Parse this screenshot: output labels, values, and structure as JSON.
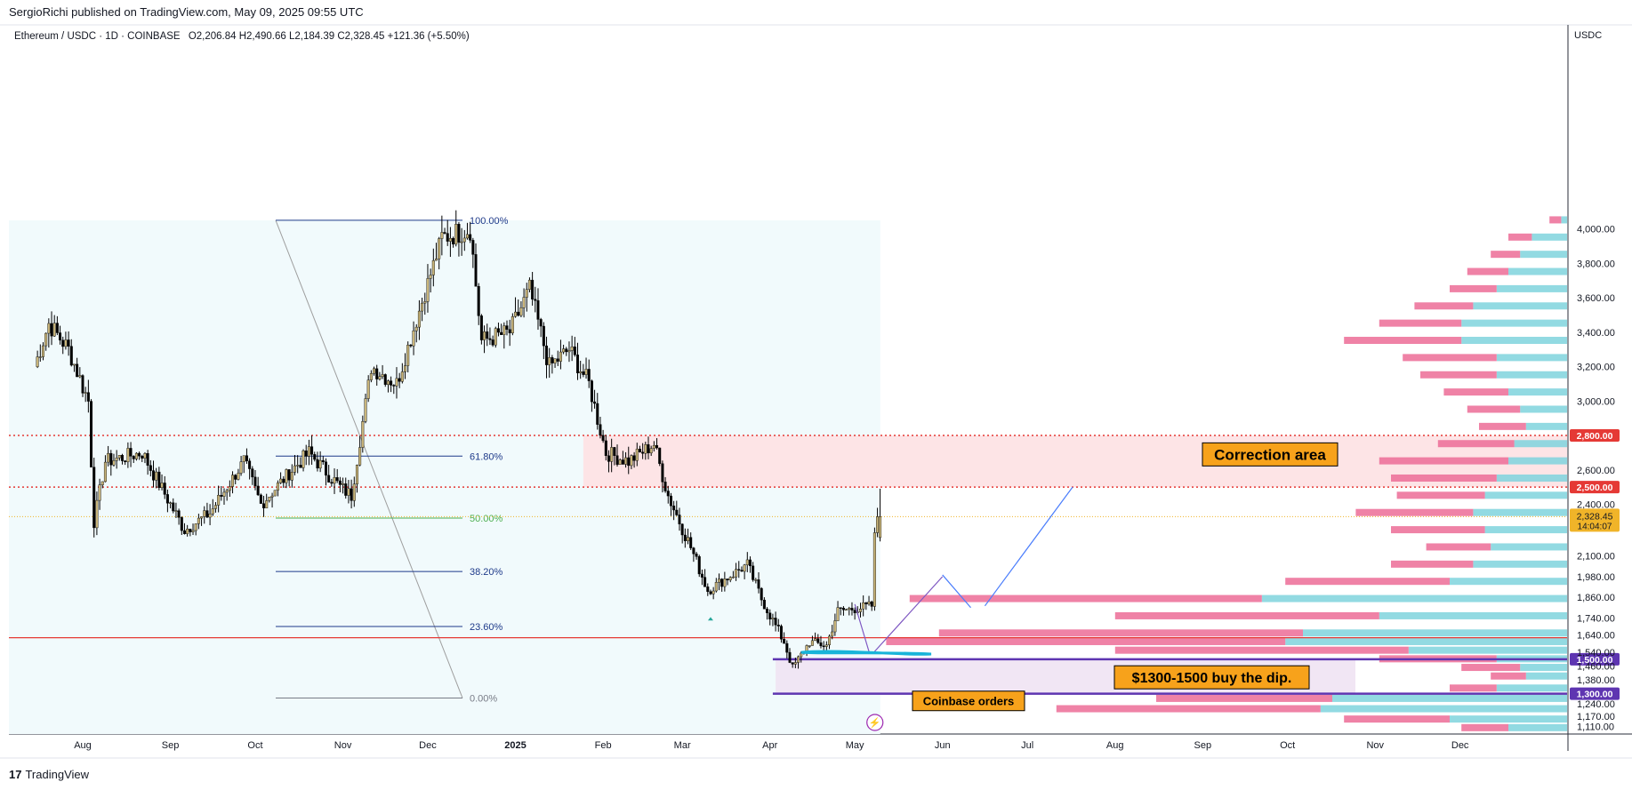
{
  "header": {
    "published": "SergioRichi published on TradingView.com, May 09, 2025 09:55 UTC",
    "symbol": "Ethereum / USDC · 1D · COINBASE",
    "ohlc": "O2,206.84  H2,490.66  L2,184.39  C2,328.45  +121.36 (+5.50%)"
  },
  "axis_currency": "USDC",
  "footer": {
    "brand": "TradingView",
    "logo_glyph": "17"
  },
  "colors": {
    "fib_blue": "#1e3a8a",
    "fib_green": "#4caf50",
    "red_line": "#e53935",
    "purple_line": "#5e35b1",
    "label_orange": "#f7a21b",
    "vp_pink": "#ec6c96",
    "vp_cyan": "#7fd3dd",
    "zone_pink": "#fde4e6",
    "zone_purple": "#efe3f3",
    "bg_blue": "#f1fafc"
  },
  "chart_data": {
    "type": "candlestick",
    "x_ticks": [
      "Aug",
      "Sep",
      "Oct",
      "Nov",
      "Dec",
      "2025",
      "Feb",
      "Mar",
      "Apr",
      "May",
      "Jun",
      "Jul",
      "Aug",
      "Sep",
      "Oct",
      "Nov",
      "Dec"
    ],
    "y_ticks": [
      4000,
      3800,
      3600,
      3400,
      3200,
      3000,
      2600,
      2400,
      2100,
      1980,
      1860,
      1740,
      1640,
      1540,
      1460,
      1380,
      1240,
      1170,
      1110
    ],
    "ylim": [
      1080,
      4100
    ],
    "price_anchors": [
      [
        "2024-07-15",
        3200
      ],
      [
        "2024-07-20",
        3450
      ],
      [
        "2024-07-27",
        3300
      ],
      [
        "2024-08-03",
        3000
      ],
      [
        "2024-08-05",
        2300
      ],
      [
        "2024-08-09",
        2650
      ],
      [
        "2024-08-22",
        2700
      ],
      [
        "2024-08-27",
        2550
      ],
      [
        "2024-09-06",
        2250
      ],
      [
        "2024-09-15",
        2350
      ],
      [
        "2024-09-27",
        2650
      ],
      [
        "2024-10-03",
        2400
      ],
      [
        "2024-10-14",
        2600
      ],
      [
        "2024-10-20",
        2700
      ],
      [
        "2024-10-31",
        2500
      ],
      [
        "2024-11-04",
        2450
      ],
      [
        "2024-11-11",
        3200
      ],
      [
        "2024-11-20",
        3100
      ],
      [
        "2024-12-06",
        3950
      ],
      [
        "2024-12-16",
        4000
      ],
      [
        "2024-12-20",
        3350
      ],
      [
        "2024-12-30",
        3400
      ],
      [
        "2025-01-06",
        3650
      ],
      [
        "2025-01-13",
        3200
      ],
      [
        "2025-01-20",
        3300
      ],
      [
        "2025-01-27",
        3100
      ],
      [
        "2025-02-02",
        2700
      ],
      [
        "2025-02-10",
        2650
      ],
      [
        "2025-02-19",
        2750
      ],
      [
        "2025-02-24",
        2450
      ],
      [
        "2025-03-04",
        2150
      ],
      [
        "2025-03-10",
        1900
      ],
      [
        "2025-03-24",
        2050
      ],
      [
        "2025-03-29",
        1850
      ],
      [
        "2025-04-06",
        1600
      ],
      [
        "2025-04-09",
        1450
      ],
      [
        "2025-04-15",
        1600
      ],
      [
        "2025-04-21",
        1580
      ],
      [
        "2025-04-25",
        1780
      ],
      [
        "2025-05-07",
        1810
      ],
      [
        "2025-05-08",
        2207
      ],
      [
        "2025-05-09",
        2328
      ]
    ],
    "last_candle": {
      "open": 2206.84,
      "high": 2490.66,
      "low": 2184.39,
      "close": 2328.45,
      "change": "+121.36 (+5.50%)"
    },
    "fibonacci": [
      {
        "level": "100.00%",
        "price": 4050
      },
      {
        "level": "61.80%",
        "price": 2680
      },
      {
        "level": "50.00%",
        "price": 2320
      },
      {
        "level": "38.20%",
        "price": 2010
      },
      {
        "level": "23.60%",
        "price": 1690
      },
      {
        "level": "0.00%",
        "price": 1275
      }
    ],
    "horizontal_levels": [
      {
        "label": "2,800.00",
        "price": 2800,
        "style": "red-dotted"
      },
      {
        "label": "2,500.00",
        "price": 2500,
        "style": "red-dotted"
      },
      {
        "label": "1,500.00",
        "price": 1500,
        "style": "purple-solid"
      },
      {
        "label": "1,300.00",
        "price": 1300,
        "style": "purple-solid"
      },
      {
        "price": 1625,
        "style": "red-solid"
      }
    ],
    "last_price_label": {
      "price": "2,328.45",
      "countdown": "14:04:07"
    },
    "annotations": [
      {
        "text": "Correction area"
      },
      {
        "text": "$1300-1500 buy the dip."
      },
      {
        "text": "Coinbase orders"
      }
    ],
    "volume_profile": [
      [
        4050,
        0.02,
        0.01
      ],
      [
        3950,
        0.04,
        0.06
      ],
      [
        3850,
        0.05,
        0.08
      ],
      [
        3750,
        0.07,
        0.1
      ],
      [
        3650,
        0.08,
        0.12
      ],
      [
        3550,
        0.1,
        0.16
      ],
      [
        3450,
        0.14,
        0.18
      ],
      [
        3350,
        0.2,
        0.18
      ],
      [
        3250,
        0.16,
        0.12
      ],
      [
        3150,
        0.13,
        0.12
      ],
      [
        3050,
        0.11,
        0.1
      ],
      [
        2950,
        0.09,
        0.08
      ],
      [
        2850,
        0.08,
        0.07
      ],
      [
        2750,
        0.13,
        0.09
      ],
      [
        2650,
        0.22,
        0.1
      ],
      [
        2550,
        0.18,
        0.12
      ],
      [
        2450,
        0.15,
        0.14
      ],
      [
        2350,
        0.2,
        0.16
      ],
      [
        2250,
        0.16,
        0.14
      ],
      [
        2150,
        0.11,
        0.13
      ],
      [
        2050,
        0.14,
        0.16
      ],
      [
        1950,
        0.28,
        0.2
      ],
      [
        1850,
        0.6,
        0.52
      ],
      [
        1750,
        0.45,
        0.32
      ],
      [
        1650,
        0.62,
        0.45
      ],
      [
        1600,
        0.68,
        0.48
      ],
      [
        1550,
        0.5,
        0.27
      ],
      [
        1500,
        0.2,
        0.12
      ],
      [
        1450,
        0.1,
        0.08
      ],
      [
        1400,
        0.06,
        0.07
      ],
      [
        1330,
        0.08,
        0.12
      ],
      [
        1270,
        0.3,
        0.4
      ],
      [
        1210,
        0.45,
        0.42
      ],
      [
        1150,
        0.18,
        0.2
      ],
      [
        1100,
        0.08,
        0.1
      ]
    ]
  }
}
